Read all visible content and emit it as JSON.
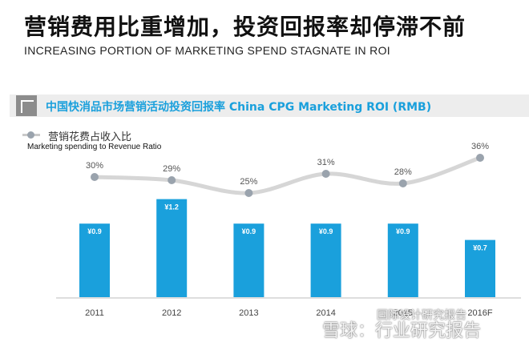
{
  "header": {
    "title_cn": "营销费用比重增加，投资回报率却停滞不前",
    "title_en": "INCREASING PORTION OF MARKETING SPEND STAGNATE IN ROI"
  },
  "colors": {
    "bar": "#1aa0dc",
    "line": "#d6d6d6",
    "marker": "#9aa3ad",
    "band": "#ededed",
    "subtitle": "#1aa0dc"
  },
  "watermark": {
    "line1": "国际设计研究报告",
    "line2": "雪球：行业研究报告"
  },
  "chart_data": {
    "type": "bar",
    "title": "中国快消品市场营销活动投资回报率  China CPG Marketing ROI (RMB)",
    "categories": [
      "2011",
      "2012",
      "2013",
      "2014",
      "2015",
      "2016F"
    ],
    "series": [
      {
        "kind": "bar",
        "values": [
          0.9,
          1.2,
          0.9,
          0.9,
          0.9,
          0.7
        ],
        "labels": [
          "¥0.9",
          "¥1.2",
          "¥0.9",
          "¥0.9",
          "¥0.9",
          "¥0.7"
        ]
      },
      {
        "kind": "line",
        "name_cn": "营销花费占收入比",
        "name_en": "Marketing spending to Revenue Ratio",
        "values": [
          30,
          29,
          25,
          31,
          28,
          36
        ],
        "labels": [
          "30%",
          "29%",
          "25%",
          "31%",
          "28%",
          "36%"
        ]
      }
    ],
    "legend": "top-left",
    "grid": false
  }
}
